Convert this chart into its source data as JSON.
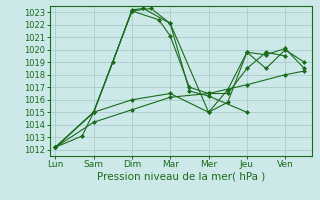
{
  "background_color": "#cce8e8",
  "grid_color": "#aacccc",
  "line_color": "#1a6b1a",
  "xlabel": "Pression niveau de la mer( hPa )",
  "xtick_labels": [
    "Lun",
    "Sam",
    "Dim",
    "Mar",
    "Mer",
    "Jeu",
    "Ven"
  ],
  "xtick_pos": [
    0,
    1,
    2,
    3,
    4,
    5,
    6
  ],
  "ylim": [
    1011.5,
    1023.5
  ],
  "yticks": [
    1012,
    1013,
    1014,
    1015,
    1016,
    1017,
    1018,
    1019,
    1020,
    1021,
    1022,
    1023
  ],
  "lines": [
    {
      "x": [
        0,
        0.7,
        1,
        1.5,
        2,
        2.3,
        3,
        3.5,
        4,
        5
      ],
      "y": [
        1012.2,
        1013.1,
        1015.0,
        1019.0,
        1023.2,
        1023.3,
        1022.1,
        1016.7,
        1016.3,
        1015.0
      ]
    },
    {
      "x": [
        0,
        1,
        2,
        2.7,
        3,
        3.5,
        4,
        4.5,
        5,
        5.5,
        6
      ],
      "y": [
        1012.2,
        1015.0,
        1023.1,
        1022.4,
        1021.1,
        1017.0,
        1016.5,
        1016.5,
        1018.5,
        1019.8,
        1019.5
      ]
    },
    {
      "x": [
        0,
        1,
        2,
        3,
        4,
        5,
        6,
        6.5
      ],
      "y": [
        1012.2,
        1014.2,
        1015.2,
        1016.2,
        1016.5,
        1017.2,
        1018.0,
        1018.3
      ]
    },
    {
      "x": [
        0,
        1,
        2,
        3,
        4,
        4.5,
        5,
        5.5,
        6,
        6.5
      ],
      "y": [
        1012.2,
        1015.0,
        1016.0,
        1016.5,
        1015.0,
        1015.8,
        1019.8,
        1019.6,
        1020.1,
        1018.5
      ]
    },
    {
      "x": [
        0,
        1,
        2,
        2.5,
        3,
        4,
        4.5,
        5,
        5.5,
        6,
        6.5
      ],
      "y": [
        1012.2,
        1015.0,
        1023.1,
        1023.3,
        1022.1,
        1015.0,
        1016.8,
        1019.8,
        1018.5,
        1020.0,
        1019.0
      ]
    }
  ]
}
